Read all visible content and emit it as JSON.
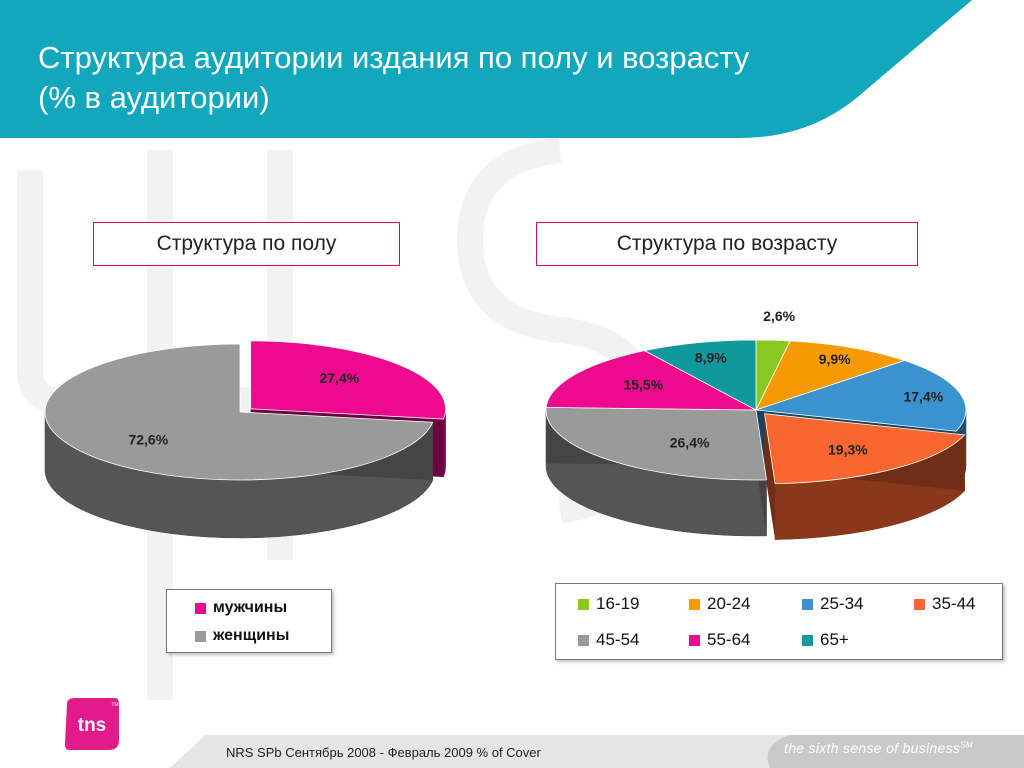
{
  "header": {
    "title_line1": "Структура аудитории издания по полу и возрасту",
    "title_line2": "(% в аудитории)"
  },
  "sections": {
    "gender_title": "Структура по полу",
    "age_title": "Структура по возрасту"
  },
  "colors": {
    "header_teal": "#11a7bd",
    "men": "#ee0a8f",
    "women": "#9a9a9a",
    "age_16_19": "#88c820",
    "age_20_24": "#f59a00",
    "age_25_34": "#3a93cf",
    "age_35_44": "#fa6630",
    "age_45_54": "#9a9a9a",
    "age_55_64": "#ee0a8f",
    "age_65_plus": "#10999a"
  },
  "chart_data": [
    {
      "type": "pie",
      "title": "Структура по полу",
      "legend_position": "bottom",
      "slices": [
        {
          "name": "мужчины",
          "value": 27.4,
          "label": "27,4%"
        },
        {
          "name": "женщины",
          "value": 72.6,
          "label": "72,6%"
        }
      ]
    },
    {
      "type": "pie",
      "title": "Структура по возрасту",
      "legend_position": "bottom",
      "slices": [
        {
          "name": "16-19",
          "value": 2.6,
          "label": "2,6%"
        },
        {
          "name": "20-24",
          "value": 9.9,
          "label": "9,9%"
        },
        {
          "name": "25-34",
          "value": 17.4,
          "label": "17,4%"
        },
        {
          "name": "35-44",
          "value": 19.3,
          "label": "19,3%"
        },
        {
          "name": "45-54",
          "value": 26.4,
          "label": "26,4%"
        },
        {
          "name": "55-64",
          "value": 15.5,
          "label": "15,5%"
        },
        {
          "name": "65+",
          "value": 8.9,
          "label": "8,9%"
        }
      ]
    }
  ],
  "legends": {
    "gender": [
      "мужчины",
      "женщины"
    ],
    "age": [
      "16-19",
      "20-24",
      "25-34",
      "35-44",
      "45-54",
      "55-64",
      "65+"
    ]
  },
  "footer": {
    "source": "NRS SPb Сентябрь 2008 - Февраль 2009 % of Cover",
    "tagline": "the sixth sense of business",
    "tagline_mark": "SM",
    "logo_text": "tns",
    "logo_mark": "TM"
  }
}
